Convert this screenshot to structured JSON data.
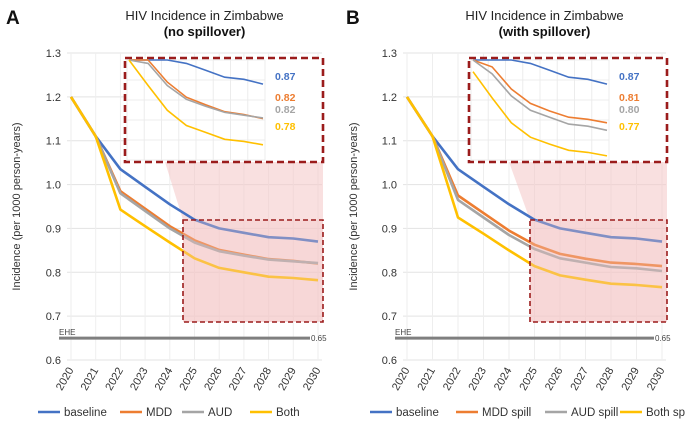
{
  "chart_data": [
    {
      "type": "line",
      "panel_letter": "A",
      "title": "HIV Incidence in Zimbabwe",
      "subtitle": "(no spillover)",
      "ylabel": "Incidence (per 1000 person-years)",
      "xlabel": "",
      "ylim": [
        0.6,
        1.3
      ],
      "yticks": [
        "0.6",
        "0.7",
        "0.8",
        "0.9",
        "1.0",
        "1.1",
        "1.2",
        "1.3"
      ],
      "x": [
        "2020",
        "2021",
        "2022",
        "2023",
        "2024",
        "2025",
        "2026",
        "2027",
        "2028",
        "2029",
        "2030"
      ],
      "series": [
        {
          "name": "baseline",
          "color": "#4472C4",
          "values": [
            1.2,
            1.11,
            1.035,
            0.995,
            0.955,
            0.92,
            0.9,
            0.89,
            0.88,
            0.877,
            0.87
          ]
        },
        {
          "name": "MDD",
          "color": "#ED7D31",
          "values": [
            1.2,
            1.11,
            0.985,
            0.945,
            0.905,
            0.873,
            0.851,
            0.84,
            0.83,
            0.826,
            0.82
          ]
        },
        {
          "name": "AUD",
          "color": "#A5A5A5",
          "values": [
            1.2,
            1.11,
            0.98,
            0.94,
            0.9,
            0.868,
            0.848,
            0.838,
            0.829,
            0.825,
            0.821
          ]
        },
        {
          "name": "Both",
          "color": "#FFC000",
          "values": [
            1.2,
            1.11,
            0.943,
            0.905,
            0.868,
            0.832,
            0.81,
            0.8,
            0.79,
            0.787,
            0.782
          ]
        }
      ],
      "reference_line": {
        "label": "EHE",
        "value": 0.65,
        "value_label": "0.65"
      },
      "zoom_labels": [
        "0.87",
        "0.82",
        "0.82",
        "0.78"
      ]
    },
    {
      "type": "line",
      "panel_letter": "B",
      "title": "HIV Incidence in Zimbabwe",
      "subtitle": "(with spillover)",
      "ylabel": "Incidence (per 1000 person-years)",
      "xlabel": "",
      "ylim": [
        0.6,
        1.3
      ],
      "yticks": [
        "0.6",
        "0.7",
        "0.8",
        "0.9",
        "1.0",
        "1.1",
        "1.2",
        "1.3"
      ],
      "x": [
        "2020",
        "2021",
        "2022",
        "2023",
        "2024",
        "2025",
        "2026",
        "2027",
        "2028",
        "2029",
        "2030"
      ],
      "series": [
        {
          "name": "baseline",
          "color": "#4472C4",
          "values": [
            1.2,
            1.11,
            1.035,
            0.995,
            0.955,
            0.92,
            0.9,
            0.89,
            0.88,
            0.877,
            0.87
          ]
        },
        {
          "name": "MDD spill",
          "color": "#ED7D31",
          "values": [
            1.2,
            1.11,
            0.975,
            0.935,
            0.895,
            0.863,
            0.842,
            0.831,
            0.822,
            0.819,
            0.814
          ]
        },
        {
          "name": "AUD spill",
          "color": "#A5A5A5",
          "values": [
            1.2,
            1.11,
            0.965,
            0.925,
            0.885,
            0.853,
            0.832,
            0.822,
            0.812,
            0.809,
            0.803
          ]
        },
        {
          "name": "Both spill",
          "color": "#FFC000",
          "values": [
            1.2,
            1.11,
            0.925,
            0.888,
            0.85,
            0.814,
            0.793,
            0.783,
            0.774,
            0.771,
            0.766
          ]
        }
      ],
      "reference_line": {
        "label": "EHE",
        "value": 0.65,
        "value_label": "0.65"
      },
      "zoom_labels": [
        "0.87",
        "0.81",
        "0.80",
        "0.77"
      ]
    }
  ]
}
